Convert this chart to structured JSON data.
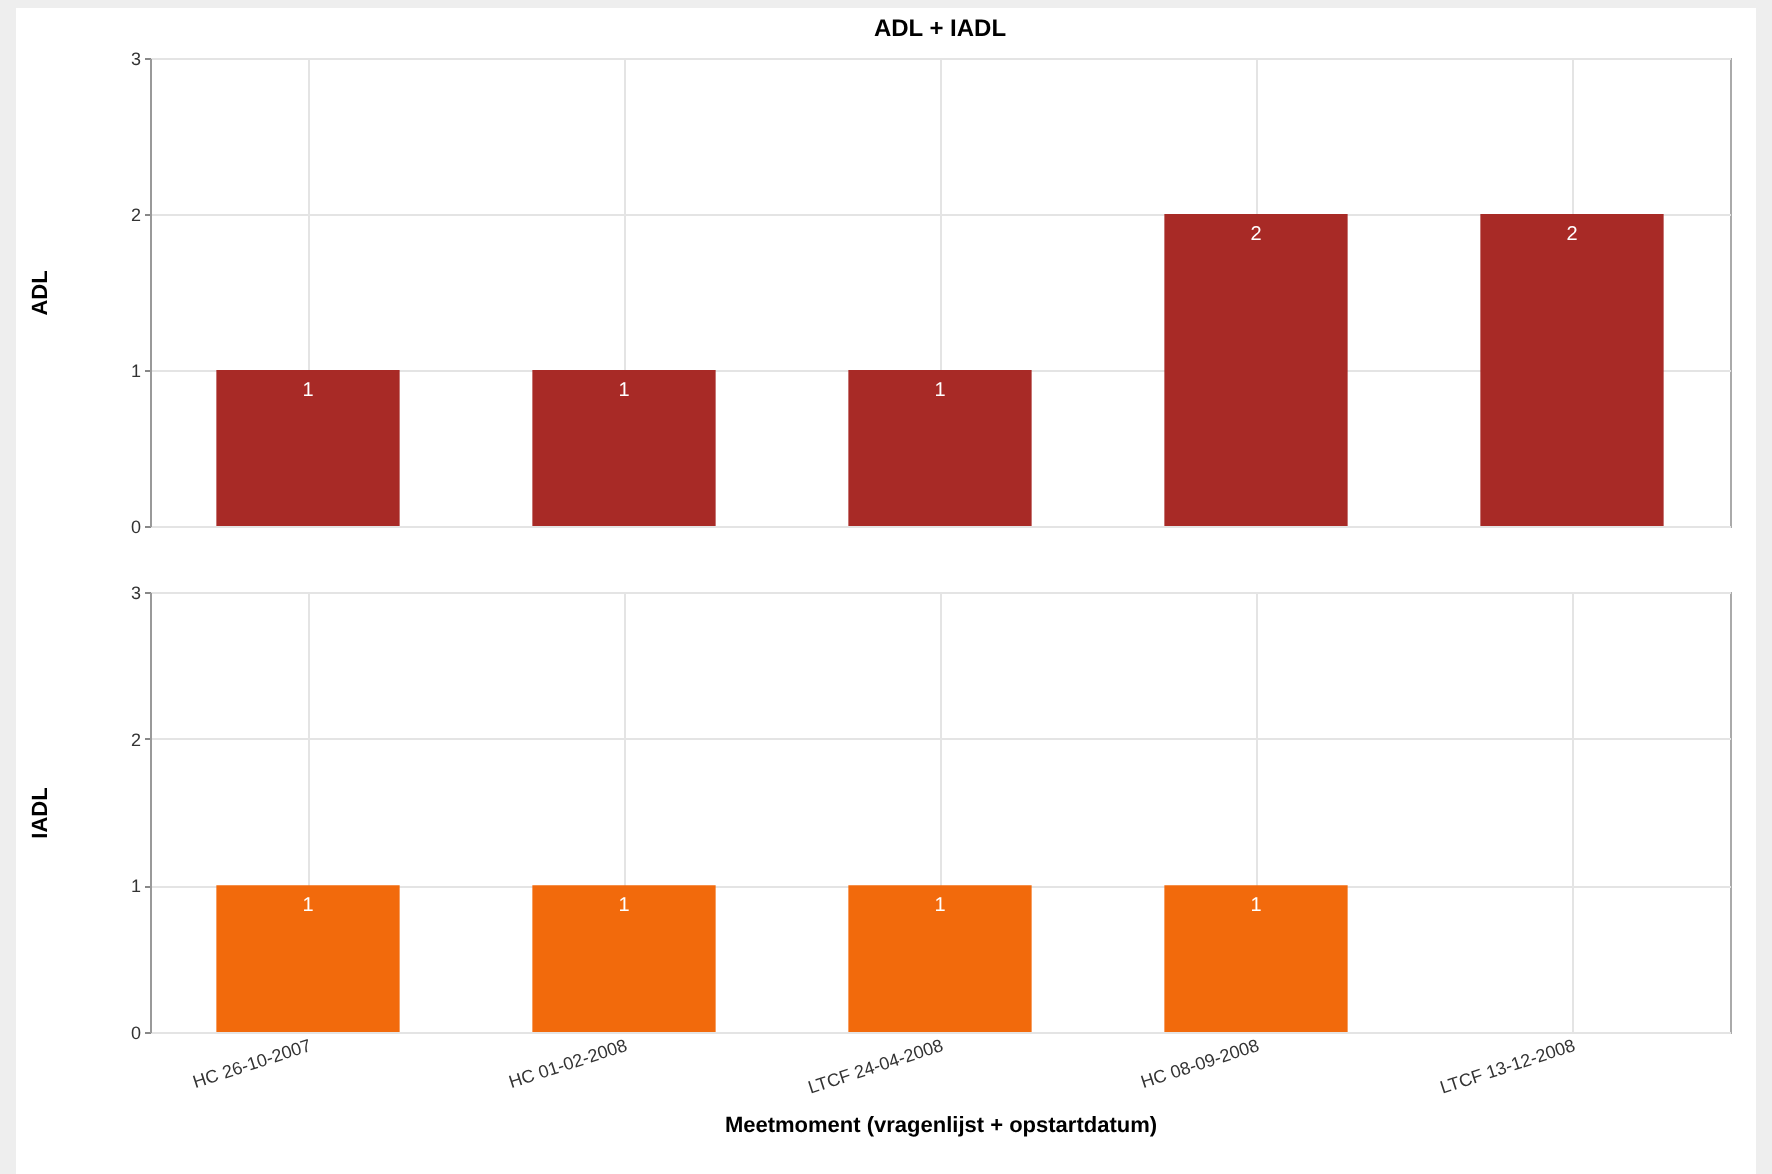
{
  "chart_data": [
    {
      "type": "bar",
      "title": "ADL + IADL",
      "ylabel": "ADL",
      "categories": [
        null,
        null,
        null,
        null,
        null
      ],
      "series": [
        {
          "color": "#a82a26",
          "values": [
            1,
            1,
            1,
            2,
            2
          ]
        }
      ],
      "ylim": [
        0,
        3
      ],
      "yticks": [
        0,
        1,
        2,
        3
      ],
      "grid": true,
      "data_labels": true,
      "tick_labels": "y"
    },
    {
      "type": "bar",
      "ylabel": "IADL",
      "xlabel": "Meetmoment (vragenlijst + opstartdatum)",
      "categories": [
        "HC 26-10-2007",
        "HC 01-02-2008",
        "LTCF 24-04-2008",
        "HC 08-09-2008",
        "LTCF 13-12-2008"
      ],
      "series": [
        {
          "color": "#f26a0c",
          "values": [
            1,
            1,
            1,
            1,
            null
          ]
        }
      ],
      "ylim": [
        0,
        3
      ],
      "yticks": [
        0,
        1,
        2,
        3
      ],
      "grid": true,
      "data_labels": true
    }
  ]
}
